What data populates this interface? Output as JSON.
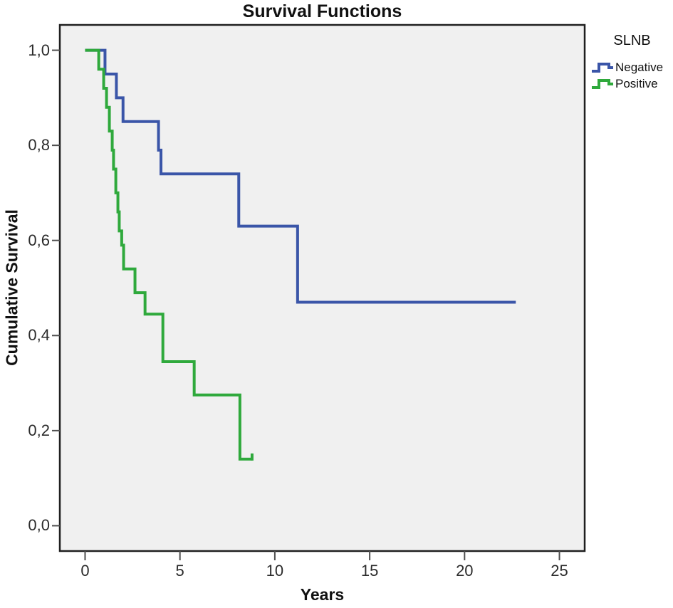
{
  "chart_data": {
    "type": "line",
    "subtype": "kaplan-meier-step",
    "title": "Survival Functions",
    "xlabel": "Years",
    "ylabel": "Cumulative Survival",
    "grid": false,
    "plot_bg": "#f0f0f0",
    "frame_color": "#1f1f1f",
    "tick_color": "#4f4f4f",
    "xlim": [
      -1.35,
      26.35
    ],
    "ylim": [
      -0.054,
      1.054
    ],
    "x_ticks": [
      {
        "label": "0",
        "v": 0
      },
      {
        "label": "5",
        "v": 5
      },
      {
        "label": "10",
        "v": 10
      },
      {
        "label": "15",
        "v": 15
      },
      {
        "label": "20",
        "v": 20
      },
      {
        "label": "25",
        "v": 25
      }
    ],
    "y_ticks": [
      {
        "label": "1,0",
        "v": 1.0
      },
      {
        "label": "0,8",
        "v": 0.8
      },
      {
        "label": "0,6",
        "v": 0.6
      },
      {
        "label": "0,4",
        "v": 0.4
      },
      {
        "label": "0,2",
        "v": 0.2
      },
      {
        "label": "0,0",
        "v": 0.0
      }
    ],
    "legend": {
      "title": "SLNB",
      "position": "outside-top-right",
      "entries": [
        {
          "label": "Negative",
          "color": "#3a55a8"
        },
        {
          "label": "Positive",
          "color": "#2fa93c"
        }
      ]
    },
    "series": [
      {
        "name": "Negative",
        "color": "#3a55a8",
        "steps": [
          [
            0,
            1.0
          ],
          [
            1.05,
            0.95
          ],
          [
            1.65,
            0.9
          ],
          [
            2.0,
            0.85
          ],
          [
            3.87,
            0.79
          ],
          [
            4.0,
            0.74
          ],
          [
            8.1,
            0.63
          ],
          [
            11.2,
            0.47
          ]
        ],
        "end_time": 22.7,
        "censor_tick_at_end": false
      },
      {
        "name": "Positive",
        "color": "#2fa93c",
        "steps": [
          [
            0,
            1.0
          ],
          [
            0.72,
            0.96
          ],
          [
            0.98,
            0.92
          ],
          [
            1.13,
            0.88
          ],
          [
            1.28,
            0.83
          ],
          [
            1.43,
            0.79
          ],
          [
            1.5,
            0.75
          ],
          [
            1.62,
            0.7
          ],
          [
            1.73,
            0.66
          ],
          [
            1.8,
            0.62
          ],
          [
            1.93,
            0.59
          ],
          [
            2.03,
            0.54
          ],
          [
            2.63,
            0.49
          ],
          [
            3.16,
            0.445
          ],
          [
            4.1,
            0.345
          ],
          [
            5.75,
            0.275
          ],
          [
            8.16,
            0.14
          ]
        ],
        "end_time": 8.8,
        "censor_tick_at_end": true
      }
    ]
  }
}
